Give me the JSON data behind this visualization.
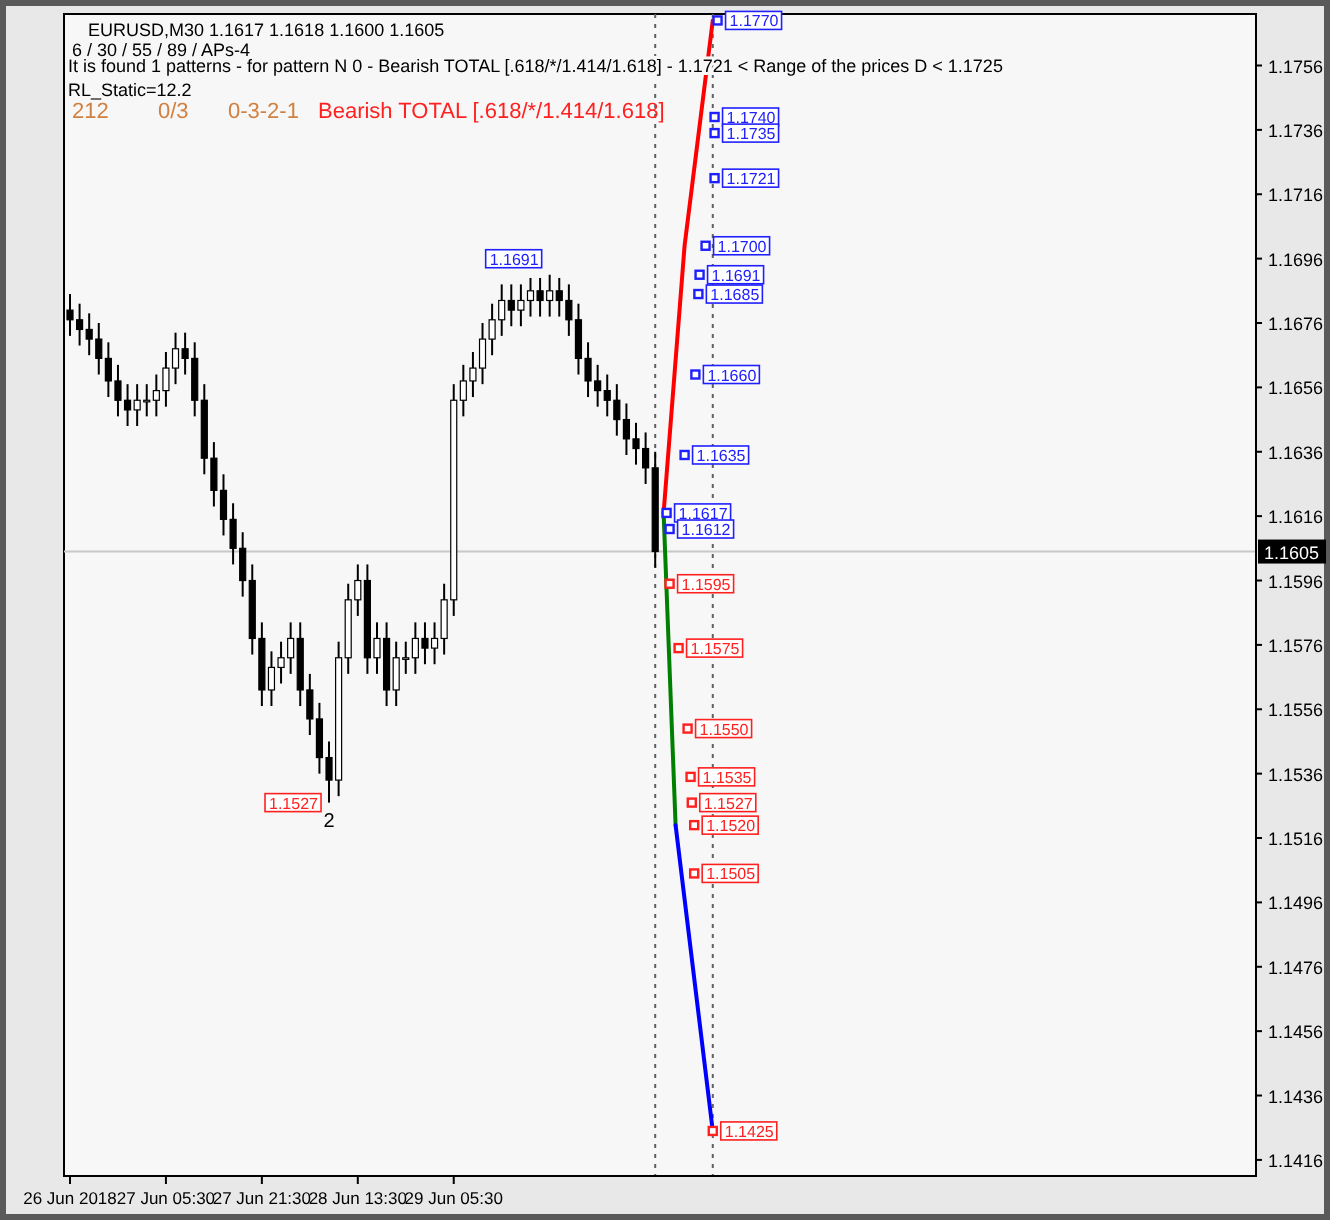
{
  "chart_data": {
    "type": "candlestick",
    "title": "EURUSD,M30  1.1617 1.1618 1.1600 1.1605",
    "subtitle": "6 / 30 / 55 / 89 / APs-4",
    "x": [
      "2018-06-26T13:30",
      "2018-06-26T15:06",
      "2018-06-26T16:42",
      "2018-06-26T18:18",
      "2018-06-26T19:54",
      "2018-06-26T21:30",
      "2018-06-26T23:06",
      "2018-06-27T00:42",
      "2018-06-27T02:18",
      "2018-06-27T03:54",
      "2018-06-27T05:30",
      "2018-06-27T07:06",
      "2018-06-27T08:42",
      "2018-06-27T10:18",
      "2018-06-27T11:54",
      "2018-06-27T13:30",
      "2018-06-27T15:06",
      "2018-06-27T16:42",
      "2018-06-27T18:18",
      "2018-06-27T19:54",
      "2018-06-27T21:30",
      "2018-06-27T23:06",
      "2018-06-28T00:42",
      "2018-06-28T02:18",
      "2018-06-28T03:54",
      "2018-06-28T05:30",
      "2018-06-28T07:06",
      "2018-06-28T08:42",
      "2018-06-28T10:18",
      "2018-06-28T11:54",
      "2018-06-28T13:30",
      "2018-06-28T15:06",
      "2018-06-28T16:42",
      "2018-06-28T18:18",
      "2018-06-28T19:54",
      "2018-06-28T21:30",
      "2018-06-28T23:06",
      "2018-06-29T00:42",
      "2018-06-29T02:18",
      "2018-06-29T03:54",
      "2018-06-29T05:30",
      "2018-06-29T07:06",
      "2018-06-29T08:42",
      "2018-06-29T10:18",
      "2018-06-29T11:54",
      "2018-06-29T13:30",
      "2018-06-29T15:06",
      "2018-06-29T16:42",
      "2018-06-29T18:18",
      "2018-06-29T19:54",
      "2018-06-29T21:30",
      "2018-06-29T23:06",
      "2018-06-30T00:42",
      "2018-06-30T02:18",
      "2018-06-30T03:54",
      "2018-06-30T05:30",
      "2018-06-30T07:06",
      "2018-06-30T08:42",
      "2018-06-30T10:18",
      "2018-06-30T11:54",
      "2018-06-30T13:30",
      "2018-06-30T15:06"
    ],
    "ohlc": [
      [
        1.168,
        1.1685,
        1.1672,
        1.1677
      ],
      [
        1.1677,
        1.1682,
        1.1669,
        1.1674
      ],
      [
        1.1674,
        1.1679,
        1.1666,
        1.1671
      ],
      [
        1.1671,
        1.1676,
        1.166,
        1.1665
      ],
      [
        1.1665,
        1.167,
        1.1653,
        1.1658
      ],
      [
        1.1658,
        1.1663,
        1.1647,
        1.1652
      ],
      [
        1.1652,
        1.1657,
        1.1644,
        1.1649
      ],
      [
        1.1649,
        1.1657,
        1.1644,
        1.1652
      ],
      [
        1.1652,
        1.1657,
        1.1647,
        1.1652
      ],
      [
        1.1652,
        1.166,
        1.1647,
        1.1655
      ],
      [
        1.1655,
        1.1667,
        1.165,
        1.1662
      ],
      [
        1.1662,
        1.1673,
        1.1657,
        1.1668
      ],
      [
        1.1668,
        1.1673,
        1.166,
        1.1665
      ],
      [
        1.1665,
        1.167,
        1.1647,
        1.1652
      ],
      [
        1.1652,
        1.1657,
        1.1629,
        1.1634
      ],
      [
        1.1634,
        1.1639,
        1.1619,
        1.1624
      ],
      [
        1.1624,
        1.1629,
        1.161,
        1.1615
      ],
      [
        1.1615,
        1.162,
        1.1601,
        1.1606
      ],
      [
        1.1606,
        1.1611,
        1.1591,
        1.1596
      ],
      [
        1.1596,
        1.1601,
        1.1573,
        1.1578
      ],
      [
        1.1578,
        1.1583,
        1.1557,
        1.1562
      ],
      [
        1.1562,
        1.1574,
        1.1557,
        1.1569
      ],
      [
        1.1569,
        1.1577,
        1.1564,
        1.1572
      ],
      [
        1.1572,
        1.1583,
        1.1567,
        1.1578
      ],
      [
        1.1578,
        1.1583,
        1.1557,
        1.1562
      ],
      [
        1.1562,
        1.1567,
        1.1548,
        1.1553
      ],
      [
        1.1553,
        1.1558,
        1.1536,
        1.1541
      ],
      [
        1.1541,
        1.1546,
        1.1527,
        1.1534
      ],
      [
        1.1534,
        1.1577,
        1.1529,
        1.1572
      ],
      [
        1.1572,
        1.1595,
        1.1567,
        1.159
      ],
      [
        1.159,
        1.1601,
        1.1585,
        1.1596
      ],
      [
        1.1596,
        1.1601,
        1.1567,
        1.1572
      ],
      [
        1.1572,
        1.1583,
        1.1567,
        1.1578
      ],
      [
        1.1578,
        1.1583,
        1.1557,
        1.1562
      ],
      [
        1.1562,
        1.1577,
        1.1557,
        1.1572
      ],
      [
        1.1572,
        1.1577,
        1.1567,
        1.1572
      ],
      [
        1.1572,
        1.1583,
        1.1567,
        1.1578
      ],
      [
        1.1578,
        1.1583,
        1.157,
        1.1575
      ],
      [
        1.1575,
        1.1583,
        1.157,
        1.1578
      ],
      [
        1.1578,
        1.1595,
        1.1573,
        1.159
      ],
      [
        1.159,
        1.1657,
        1.1585,
        1.1652
      ],
      [
        1.1652,
        1.1663,
        1.1647,
        1.1658
      ],
      [
        1.1658,
        1.1667,
        1.1653,
        1.1662
      ],
      [
        1.1662,
        1.1676,
        1.1657,
        1.1671
      ],
      [
        1.1671,
        1.1682,
        1.1666,
        1.1677
      ],
      [
        1.1677,
        1.1688,
        1.1672,
        1.1683
      ],
      [
        1.1683,
        1.1688,
        1.1675,
        1.168
      ],
      [
        1.168,
        1.1688,
        1.1675,
        1.1683
      ],
      [
        1.1683,
        1.169,
        1.1678,
        1.1686
      ],
      [
        1.1686,
        1.169,
        1.1678,
        1.1683
      ],
      [
        1.1683,
        1.1691,
        1.1678,
        1.1686
      ],
      [
        1.1686,
        1.169,
        1.1678,
        1.1683
      ],
      [
        1.1683,
        1.1688,
        1.1672,
        1.1677
      ],
      [
        1.1677,
        1.1682,
        1.166,
        1.1665
      ],
      [
        1.1665,
        1.167,
        1.1653,
        1.1658
      ],
      [
        1.1658,
        1.1663,
        1.165,
        1.1655
      ],
      [
        1.1655,
        1.166,
        1.1647,
        1.1652
      ],
      [
        1.1652,
        1.1657,
        1.1641,
        1.1646
      ],
      [
        1.1646,
        1.1651,
        1.1635,
        1.164
      ],
      [
        1.164,
        1.1645,
        1.1632,
        1.1637
      ],
      [
        1.1637,
        1.1642,
        1.1626,
        1.1631
      ],
      [
        1.1631,
        1.1636,
        1.16,
        1.1605
      ]
    ],
    "series": [
      {
        "type": "line",
        "color": "#ff0000",
        "x": [
          "2018-06-30T16:30",
          "2018-06-30T20:00",
          "2018-07-01T00:42"
        ],
        "values": [
          1.1617,
          1.17,
          1.177
        ]
      },
      {
        "type": "line",
        "color": "#008000",
        "x": [
          "2018-06-30T16:30",
          "2018-06-30T18:30"
        ],
        "values": [
          1.1617,
          1.152
        ]
      },
      {
        "type": "line",
        "color": "#0000ff",
        "x": [
          "2018-06-30T18:30",
          "2018-07-01T00:42"
        ],
        "values": [
          1.152,
          1.1425
        ]
      },
      {
        "type": "scatter",
        "marker": "square",
        "colors": [
          "#2020ff",
          "#2020ff",
          "#2020ff",
          "#2020ff",
          "#2020ff",
          "#2020ff",
          "#2020ff",
          "#2020ff",
          "#2020ff",
          "#2020ff",
          "#2020ff",
          "#ff2020",
          "#ff2020",
          "#ff2020",
          "#ff2020",
          "#ff2020",
          "#ff2020",
          "#ff2020",
          "#ff2020"
        ],
        "x": [
          "2018-07-01T01:30",
          "2018-07-01T01:00",
          "2018-07-01T01:00",
          "2018-07-01T01:00",
          "2018-06-30T23:30",
          "2018-06-30T22:30",
          "2018-06-30T22:18",
          "2018-06-30T21:48",
          "2018-06-30T20:00",
          "2018-06-30T17:00",
          "2018-06-30T17:30",
          "2018-06-30T17:30",
          "2018-06-30T19:00",
          "2018-06-30T20:30",
          "2018-06-30T21:00",
          "2018-06-30T21:12",
          "2018-06-30T21:36",
          "2018-06-30T21:36",
          "2018-07-01T00:42"
        ],
        "values": [
          1.177,
          1.174,
          1.1735,
          1.1721,
          1.17,
          1.1691,
          1.1685,
          1.166,
          1.1635,
          1.1617,
          1.1612,
          1.1595,
          1.1575,
          1.155,
          1.1535,
          1.1527,
          1.152,
          1.1505,
          1.1425
        ]
      }
    ],
    "xlim": [
      "2018-06-26T12:30",
      "2018-07-04T19:18"
    ],
    "ylim": [
      1.1411,
      1.1772
    ],
    "xticks": [
      {
        "value": "2018-06-26T13:30",
        "label": "26 Jun 2018"
      },
      {
        "value": "2018-06-27T05:30",
        "label": "27 Jun 05:30"
      },
      {
        "value": "2018-06-27T21:30",
        "label": "27 Jun 21:30"
      },
      {
        "value": "2018-06-28T13:30",
        "label": "28 Jun 13:30"
      },
      {
        "value": "2018-06-29T05:30",
        "label": "29 Jun 05:30"
      }
    ],
    "yticks": [
      1.1416,
      1.1436,
      1.1456,
      1.1476,
      1.1496,
      1.1516,
      1.1536,
      1.1556,
      1.1576,
      1.1596,
      1.1616,
      1.1636,
      1.1656,
      1.1676,
      1.1696,
      1.1716,
      1.1736,
      1.1756
    ],
    "ref_lines": [
      {
        "axis": "y",
        "value": 1.1605,
        "label": "1.1605",
        "color": "#c8c8c8",
        "line_style": "solid"
      },
      {
        "axis": "x",
        "value": "2018-06-30T15:06",
        "color": "#606060",
        "line_style": "dotted"
      },
      {
        "axis": "x",
        "value": "2018-07-01T00:42",
        "color": "#606060",
        "line_style": "dotted"
      }
    ],
    "annotations": [
      "It is found 1 patterns  -  for pattern N 0 - Bearish TOTAL [.618/*/1.414/1.618] - 1.1721 < Range of the prices D < 1.1725",
      "RL_Static=12.2",
      "212",
      "0/3",
      "0-3-2-1",
      "Bearish TOTAL [.618/*/1.414/1.618]",
      {
        "text": "1.1691",
        "x": "2018-06-29T21:30",
        "y": 1.1691
      },
      {
        "text": "1.1527",
        "x": "2018-06-28T08:42",
        "y": 1.1527
      },
      {
        "text": "2",
        "x": "2018-06-28T08:42",
        "y": 1.1527
      },
      {
        "text": "1.1770",
        "x": "2018-07-01T01:30",
        "y": 1.177
      },
      {
        "text": "1.1740",
        "x": "2018-07-01T01:00",
        "y": 1.174
      },
      {
        "text": "1.1735",
        "x": "2018-07-01T01:00",
        "y": 1.1735
      },
      {
        "text": "1.1721",
        "x": "2018-07-01T01:00",
        "y": 1.1721
      },
      {
        "text": "1.1700",
        "x": "2018-06-30T23:30",
        "y": 1.17
      },
      {
        "text": "1.1691",
        "x": "2018-06-30T22:30",
        "y": 1.1691
      },
      {
        "text": "1.1685",
        "x": "2018-06-30T22:18",
        "y": 1.1685
      },
      {
        "text": "1.1660",
        "x": "2018-06-30T21:48",
        "y": 1.166
      },
      {
        "text": "1.1635",
        "x": "2018-06-30T20:00",
        "y": 1.1635
      },
      {
        "text": "1.1617",
        "x": "2018-06-30T17:00",
        "y": 1.1617
      },
      {
        "text": "1.1612",
        "x": "2018-06-30T17:30",
        "y": 1.1612
      },
      {
        "text": "1.1595",
        "x": "2018-06-30T17:30",
        "y": 1.1595
      },
      {
        "text": "1.1575",
        "x": "2018-06-30T19:00",
        "y": 1.1575
      },
      {
        "text": "1.1550",
        "x": "2018-06-30T20:30",
        "y": 1.155
      },
      {
        "text": "1.1535",
        "x": "2018-06-30T21:00",
        "y": 1.1535
      },
      {
        "text": "1.1527",
        "x": "2018-06-30T21:12",
        "y": 1.1527
      },
      {
        "text": "1.1520",
        "x": "2018-06-30T21:36",
        "y": 1.152
      },
      {
        "text": "1.1505",
        "x": "2018-06-30T21:36",
        "y": 1.1505
      },
      {
        "text": "1.1425",
        "x": "2018-07-01T00:42",
        "y": 1.1425
      }
    ]
  }
}
